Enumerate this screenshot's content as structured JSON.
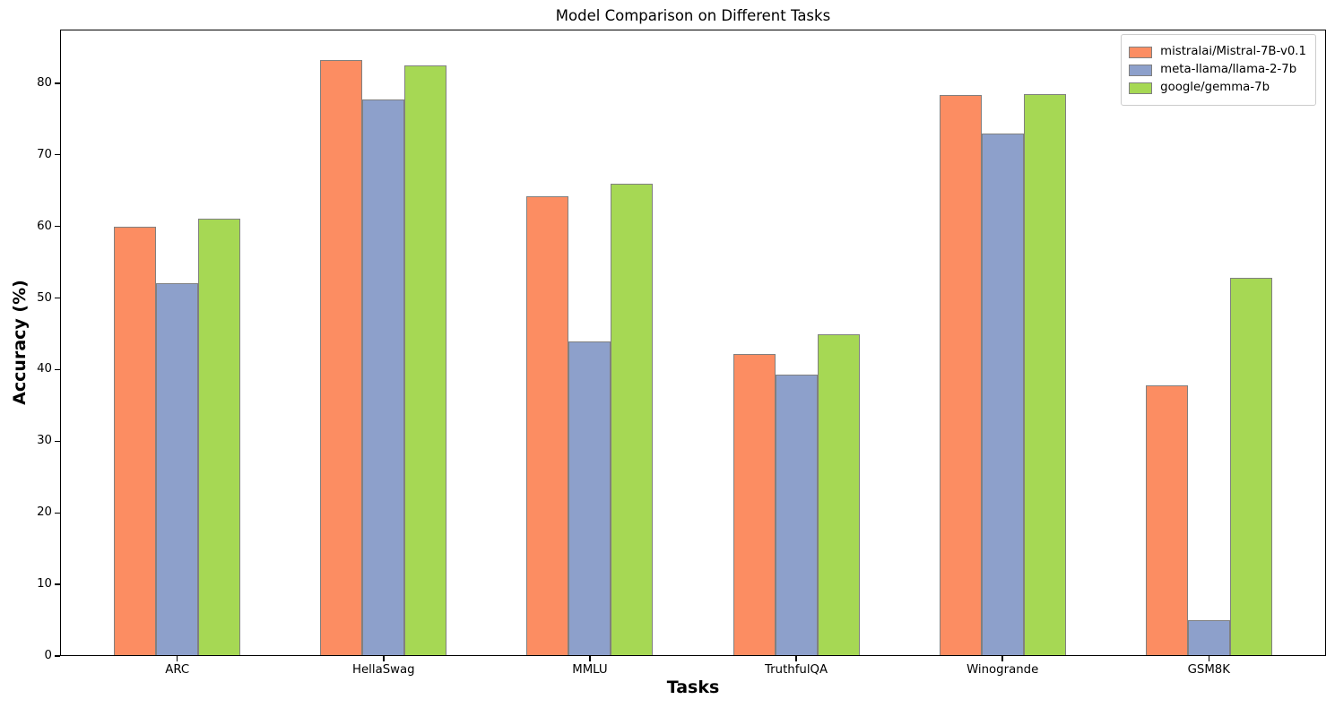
{
  "chart_data": {
    "type": "bar",
    "title": "Model Comparison on Different Tasks",
    "xlabel": "Tasks",
    "ylabel": "Accuracy (%)",
    "categories": [
      "ARC",
      "HellaSwag",
      "MMLU",
      "TruthfulQA",
      "Winogrande",
      "GSM8K"
    ],
    "series": [
      {
        "name": "mistralai/Mistral-7B-v0.1",
        "color": "#FC8D62",
        "values": [
          60.0,
          83.3,
          64.2,
          42.2,
          78.4,
          37.8
        ]
      },
      {
        "name": "meta-llama/llama-2-7b",
        "color": "#8DA0CB",
        "values": [
          52.1,
          77.7,
          44.0,
          39.3,
          73.0,
          5.0
        ]
      },
      {
        "name": "google/gemma-7b",
        "color": "#A6D854",
        "values": [
          61.1,
          82.5,
          66.0,
          44.9,
          78.5,
          52.8
        ]
      }
    ],
    "ylim": [
      0,
      87.5
    ],
    "yticks": [
      0,
      10,
      20,
      30,
      40,
      50,
      60,
      70,
      80
    ],
    "bar_edge_color": "#808080",
    "grid": false,
    "legend_position": "upper right"
  }
}
